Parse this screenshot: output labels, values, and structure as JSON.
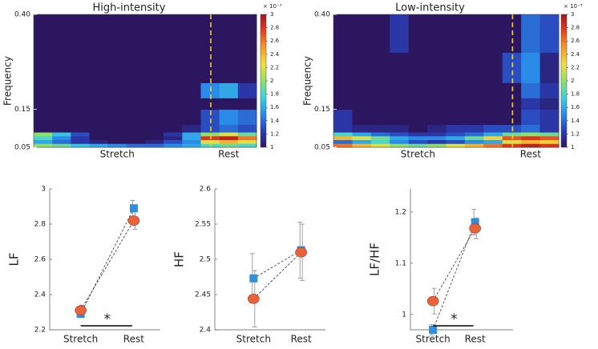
{
  "chart_data": [
    {
      "type": "heatmap",
      "title": "High-intensity",
      "ylabel": "Frequency",
      "ylim": [
        0.05,
        0.4
      ],
      "yticks": [
        0.05,
        0.15,
        {
          "value": 0.4,
          "label": "0.40"
        }
      ],
      "ybins": [
        0.05,
        0.06,
        0.07,
        0.08,
        0.09,
        0.11,
        0.15,
        0.18,
        0.22,
        0.3,
        0.4
      ],
      "x": [
        null,
        null,
        null,
        null,
        "Stretch",
        null,
        null,
        null,
        null,
        null,
        "Rest",
        null
      ],
      "z": [
        [
          2.0,
          1.9,
          1.7,
          1.6,
          1.5,
          1.4,
          1.4,
          1.5,
          1.6,
          1.8,
          1.9,
          1.8
        ],
        [
          1.6,
          1.4,
          1.2,
          1.1,
          1,
          1,
          1.1,
          1.3,
          1.5,
          2.2,
          2.4,
          2.2
        ],
        [
          1.8,
          1.5,
          1.2,
          1,
          1,
          1,
          1,
          1.1,
          1.6,
          2.8,
          2.9,
          2.6
        ],
        [
          2.0,
          1.7,
          1.3,
          1,
          1,
          1,
          1,
          1.2,
          1.6,
          2.0,
          2.2,
          1.9
        ],
        [
          1,
          1,
          1,
          1,
          1,
          1,
          1,
          1,
          1.1,
          1.3,
          1.4,
          1.3
        ],
        [
          1,
          1,
          1,
          1,
          1,
          1,
          1,
          1,
          1,
          1.3,
          1.5,
          1.4
        ],
        [
          1,
          1,
          1,
          1,
          1,
          1,
          1,
          1,
          1,
          1,
          1,
          1
        ],
        [
          1,
          1,
          1,
          1,
          1,
          1,
          1,
          1,
          1,
          1.5,
          1.6,
          1.2
        ],
        [
          1,
          1,
          1,
          1,
          1,
          1,
          1,
          1,
          1,
          1,
          1,
          1
        ],
        [
          1,
          1,
          1,
          1,
          1,
          1,
          1,
          1,
          1,
          1,
          1,
          1
        ]
      ],
      "colormap": [
        "#2d1660",
        "#2a3fb8",
        "#2a8ce8",
        "#3cd2e0",
        "#8ee06a",
        "#f0e040",
        "#f59a2a",
        "#e8401e",
        "#a0141e"
      ],
      "clim": [
        1,
        3
      ],
      "cticks": [
        1,
        1.2,
        1.4,
        1.6,
        1.8,
        2,
        2.2,
        2.4,
        2.6,
        2.8,
        3
      ],
      "colorbar_label": "× 10⁻³"
    },
    {
      "type": "heatmap",
      "title": "Low-intensity",
      "ylabel": "Frequency",
      "ylim": [
        0.05,
        0.4
      ],
      "yticks": [
        0.05,
        0.15,
        {
          "value": 0.4,
          "label": "0.40"
        }
      ],
      "ybins": [
        0.05,
        0.06,
        0.07,
        0.08,
        0.09,
        0.11,
        0.15,
        0.18,
        0.22,
        0.3,
        0.4
      ],
      "x": [
        null,
        null,
        null,
        null,
        "Stretch",
        null,
        null,
        null,
        null,
        null,
        "Rest",
        null
      ],
      "z": [
        [
          2.6,
          2.4,
          2.2,
          2.0,
          1.9,
          2.0,
          2.2,
          2.4,
          2.6,
          2.8,
          2.9,
          2.8
        ],
        [
          1.4,
          1.6,
          1.8,
          1.5,
          1.3,
          1.2,
          1.3,
          1.5,
          1.6,
          2.2,
          2.4,
          2.3
        ],
        [
          2.4,
          2.2,
          1.9,
          1.6,
          1.5,
          1.5,
          1.6,
          1.9,
          2.3,
          2.7,
          2.8,
          2.7
        ],
        [
          1.8,
          1.6,
          1.4,
          1.3,
          1.2,
          1.2,
          1.3,
          1.4,
          1.6,
          1.9,
          2.0,
          1.9
        ],
        [
          1.2,
          1.1,
          1.1,
          1.1,
          1,
          1.1,
          1.2,
          1.2,
          1.3,
          1.3,
          1.4,
          1.2
        ],
        [
          1.2,
          1,
          1,
          1,
          1,
          1,
          1,
          1,
          1,
          1,
          1.3,
          1.2
        ],
        [
          1,
          1,
          1,
          1,
          1,
          1,
          1,
          1,
          1,
          1,
          1.2,
          1.1
        ],
        [
          1,
          1,
          1,
          1,
          1,
          1,
          1,
          1,
          1,
          1,
          1.4,
          1.2
        ],
        [
          1,
          1,
          1,
          1,
          1,
          1,
          1,
          1,
          1,
          1.3,
          1.5,
          1.1
        ],
        [
          1,
          1,
          1,
          1.2,
          1,
          1,
          1,
          1,
          1,
          1,
          1.4,
          1.3
        ]
      ],
      "colormap": [
        "#2d1660",
        "#2a3fb8",
        "#2a8ce8",
        "#3cd2e0",
        "#8ee06a",
        "#f0e040",
        "#f59a2a",
        "#e8401e",
        "#a0141e"
      ],
      "clim": [
        1,
        3
      ],
      "cticks": [
        1,
        1.2,
        1.4,
        1.6,
        1.8,
        2,
        2.2,
        2.4,
        2.6,
        2.8,
        3
      ],
      "colorbar_label": "× 10⁻³"
    },
    {
      "type": "line",
      "ylabel": "LF",
      "categories": [
        "Stretch",
        "Rest"
      ],
      "ylim": [
        2.2,
        3
      ],
      "yticks": [
        2.2,
        2.4,
        2.6,
        2.8,
        3
      ],
      "series": [
        {
          "color": "#2f8fdd",
          "marker": "square",
          "values": [
            2.29,
            2.89
          ],
          "errors": [
            0.02,
            0.045
          ]
        },
        {
          "color": "#e8623a",
          "marker": "circle",
          "values": [
            2.31,
            2.82
          ],
          "errors": [
            0.03,
            0.05
          ]
        }
      ],
      "annotation": "*"
    },
    {
      "type": "line",
      "ylabel": "HF",
      "categories": [
        "Stretch",
        "Rest"
      ],
      "ylim": [
        2.4,
        2.6
      ],
      "yticks": [
        2.4,
        2.45,
        2.5,
        2.55,
        2.6
      ],
      "series": [
        {
          "color": "#2f8fdd",
          "marker": "square",
          "values": [
            2.473,
            2.513
          ],
          "errors": [
            0.035,
            0.04
          ]
        },
        {
          "color": "#e8623a",
          "marker": "circle",
          "values": [
            2.444,
            2.51
          ],
          "errors": [
            0.04,
            0.04
          ]
        }
      ]
    },
    {
      "type": "line",
      "ylabel": "LF/HF",
      "categories": [
        "Stretch",
        "Rest"
      ],
      "ylim": [
        0.97,
        1.245
      ],
      "yticks": [
        1,
        1.1,
        1.2
      ],
      "series": [
        {
          "color": "#2f8fdd",
          "marker": "square",
          "values": [
            0.97,
            1.18
          ],
          "errors": [
            0.01,
            0.025
          ]
        },
        {
          "color": "#e8623a",
          "marker": "circle",
          "values": [
            1.026,
            1.168
          ],
          "errors": [
            0.025,
            0.02
          ]
        }
      ],
      "annotation": "*"
    }
  ]
}
